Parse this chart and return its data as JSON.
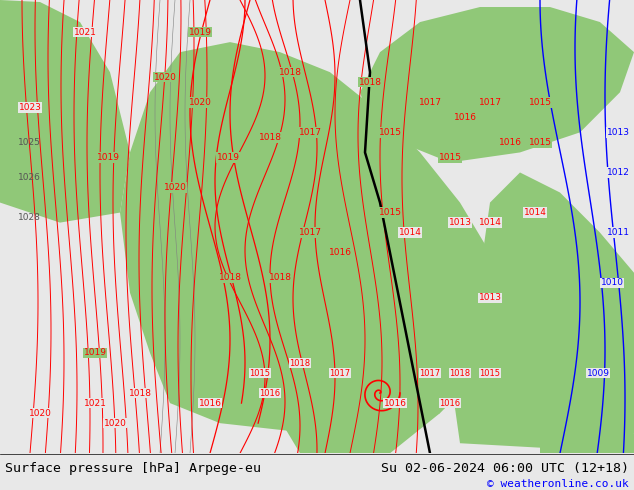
{
  "title_left": "Surface pressure [hPa] Arpege-eu",
  "title_right": "Su 02-06-2024 06:00 UTC (12+18)",
  "copyright": "© weatheronline.co.uk",
  "bg_color": "#e8e8e8",
  "ocean_color": "#e0e0e0",
  "green_color": "#90c878",
  "fig_width": 6.34,
  "fig_height": 4.9,
  "footer_bg": "#d8d8d8"
}
